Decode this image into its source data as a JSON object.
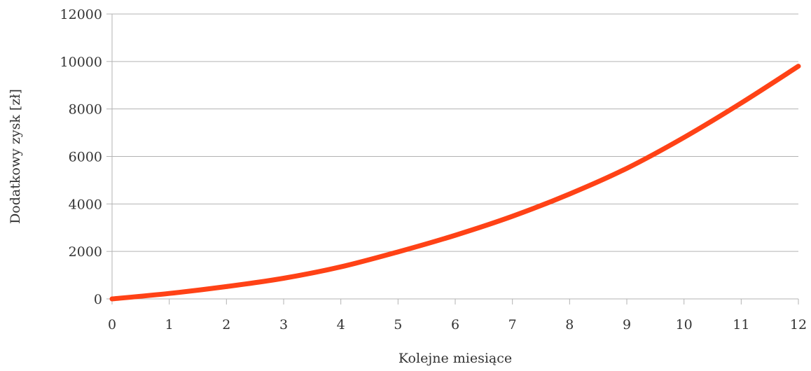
{
  "chart_data": {
    "type": "line",
    "title": "",
    "xlabel": "Kolejne miesiące",
    "ylabel": "Dodatkowy zysk [zł]",
    "x": [
      0,
      1,
      2,
      3,
      4,
      5,
      6,
      7,
      8,
      9,
      10,
      11,
      12
    ],
    "series": [
      {
        "values": [
          0,
          230,
          520,
          870,
          1350,
          1980,
          2680,
          3480,
          4420,
          5500,
          6800,
          8250,
          9800
        ]
      }
    ],
    "xlim": [
      0,
      12
    ],
    "ylim": [
      0,
      12000
    ],
    "xticks": [
      0,
      1,
      2,
      3,
      4,
      5,
      6,
      7,
      8,
      9,
      10,
      11,
      12
    ],
    "yticks": [
      0,
      2000,
      4000,
      6000,
      8000,
      10000,
      12000
    ],
    "grid": "horizontal",
    "legend": "none",
    "line_color": "#ff4216",
    "grid_color": "#b3b3b3"
  }
}
